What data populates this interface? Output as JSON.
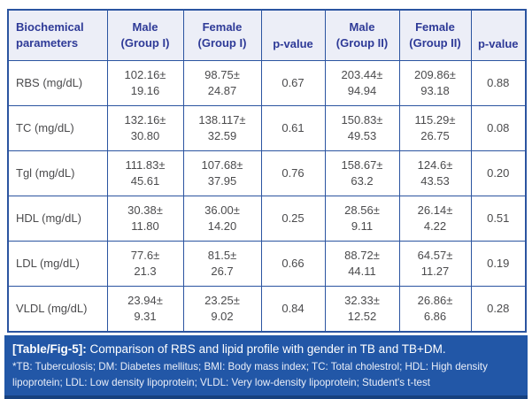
{
  "table": {
    "headers": [
      {
        "line1": "Biochemical",
        "line2": "parameters"
      },
      {
        "line1": "Male",
        "line2": "(Group I)"
      },
      {
        "line1": "Female",
        "line2": "(Group I)"
      },
      {
        "line1": "p-value",
        "line2": ""
      },
      {
        "line1": "Male",
        "line2": "(Group II)"
      },
      {
        "line1": "Female",
        "line2": "(Group II)"
      },
      {
        "line1": "p-value",
        "line2": ""
      }
    ],
    "rows": [
      {
        "label": "RBS (mg/dL)",
        "male1_mean": "102.16±",
        "male1_sd": "19.16",
        "female1_mean": "98.75±",
        "female1_sd": "24.87",
        "p1": "0.67",
        "male2_mean": "203.44±",
        "male2_sd": "94.94",
        "female2_mean": "209.86±",
        "female2_sd": "93.18",
        "p2": "0.88"
      },
      {
        "label": "TC (mg/dL)",
        "male1_mean": "132.16±",
        "male1_sd": "30.80",
        "female1_mean": "138.117±",
        "female1_sd": "32.59",
        "p1": "0.61",
        "male2_mean": "150.83±",
        "male2_sd": "49.53",
        "female2_mean": "115.29±",
        "female2_sd": "26.75",
        "p2": "0.08"
      },
      {
        "label": "Tgl (mg/dL)",
        "male1_mean": "111.83±",
        "male1_sd": "45.61",
        "female1_mean": "107.68±",
        "female1_sd": "37.95",
        "p1": "0.76",
        "male2_mean": "158.67±",
        "male2_sd": "63.2",
        "female2_mean": "124.6±",
        "female2_sd": "43.53",
        "p2": "0.20"
      },
      {
        "label": "HDL (mg/dL)",
        "male1_mean": "30.38±",
        "male1_sd": "11.80",
        "female1_mean": "36.00±",
        "female1_sd": "14.20",
        "p1": "0.25",
        "male2_mean": "28.56±",
        "male2_sd": "9.11",
        "female2_mean": "26.14±",
        "female2_sd": "4.22",
        "p2": "0.51"
      },
      {
        "label": "LDL (mg/dL)",
        "male1_mean": "77.6±",
        "male1_sd": "21.3",
        "female1_mean": "81.5±",
        "female1_sd": "26.7",
        "p1": "0.66",
        "male2_mean": "88.72±",
        "male2_sd": "44.11",
        "female2_mean": "64.57±",
        "female2_sd": "11.27",
        "p2": "0.19"
      },
      {
        "label": "VLDL (mg/dL)",
        "male1_mean": "23.94±",
        "male1_sd": "9.31",
        "female1_mean": "23.25±",
        "female1_sd": "9.02",
        "p1": "0.84",
        "male2_mean": "32.33±",
        "male2_sd": "12.52",
        "female2_mean": "26.86±",
        "female2_sd": "6.86",
        "p2": "0.28"
      }
    ]
  },
  "caption": {
    "label": "[Table/Fig-5]:",
    "text": "Comparison of RBS and lipid profile with gender in TB and TB+DM."
  },
  "footnote": "*TB: Tuberculosis; DM: Diabetes mellitus; BMI: Body mass index; TC: Total cholestrol; HDL: High density lipoprotein; LDL: Low density lipoprotein; VLDL: Very low-density lipoprotein; Student's t-test",
  "colors": {
    "border": "#2b54a0",
    "header_bg": "#eceef7",
    "header_text": "#2e3a97",
    "body_text": "#4b4b4d",
    "footer_bg": "#2257a7",
    "footer_edge": "#17417f"
  }
}
